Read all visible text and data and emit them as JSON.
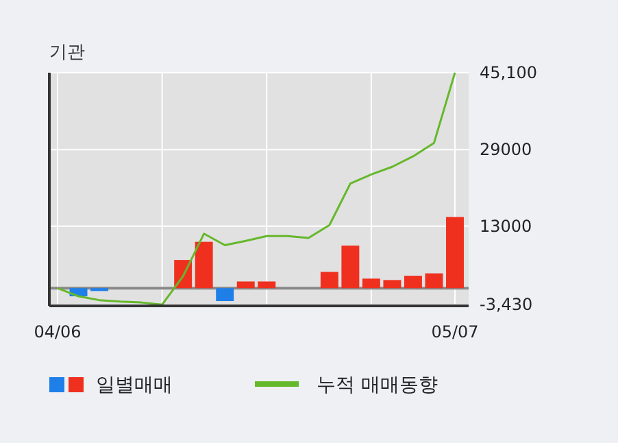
{
  "chart_data": {
    "type": "bar",
    "title": "기관",
    "categories": [
      "04/06",
      null,
      null,
      null,
      null,
      null,
      null,
      null,
      null,
      null,
      null,
      null,
      null,
      null,
      null,
      null,
      null,
      null,
      null,
      "05/07"
    ],
    "series": [
      {
        "name": "일별매매",
        "colors": [
          "#f0301e",
          "#1e7fe8",
          "#1e7fe8",
          "#f0301e",
          "#f0301e",
          "#f0301e",
          "#f0301e",
          "#f0301e",
          "#1e7fe8",
          "#f0301e",
          "#f0301e",
          "#f0301e",
          "#f0301e",
          "#f0301e",
          "#f0301e",
          "#f0301e",
          "#f0301e",
          "#f0301e",
          "#f0301e",
          "#f0301e"
        ],
        "values": [
          0,
          -1700,
          -600,
          0,
          0,
          0,
          5900,
          9700,
          -2700,
          1400,
          1400,
          0,
          0,
          3400,
          8900,
          2000,
          1700,
          2600,
          3100,
          14900
        ]
      },
      {
        "name": "누적 매매동향",
        "type": "line",
        "color": "#66b82b",
        "values": [
          0,
          -1700,
          -2500,
          -2800,
          -3000,
          -3430,
          2500,
          11400,
          9000,
          9900,
          10900,
          10900,
          10500,
          13200,
          21900,
          23800,
          25400,
          27600,
          30400,
          45100
        ]
      }
    ],
    "ylim": [
      -3700,
      45100
    ],
    "yticks": [
      {
        "value": 45100,
        "label": "45,100"
      },
      29000,
      13000,
      {
        "value": -3430,
        "label": "-3,430"
      }
    ],
    "ref_lines": [
      {
        "axis": "y",
        "value": 0,
        "color": "#888888"
      }
    ],
    "grid": true,
    "legend": "bottom"
  }
}
